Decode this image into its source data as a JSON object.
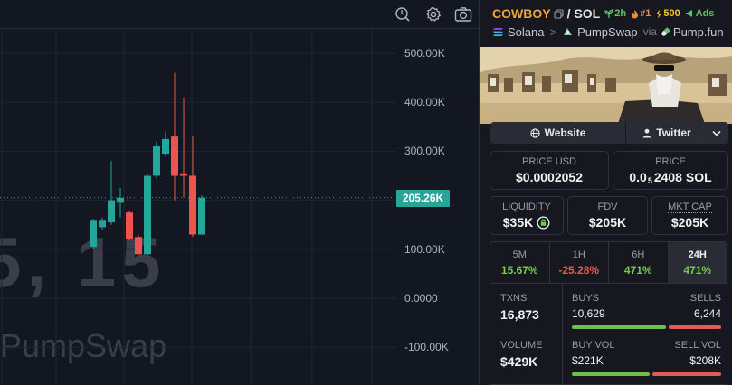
{
  "chart": {
    "y_ticks": [
      "500.00K",
      "400.00K",
      "300.00K",
      "200.00K",
      "100.00K",
      "0.0000",
      "-100.00K"
    ],
    "current_price_label": "205.26K",
    "watermark_time": "5, 15",
    "watermark_source": "PumpSwap",
    "colors": {
      "up": "#26a69a",
      "down": "#ef5350",
      "background": "#131722"
    }
  },
  "chart_data": {
    "type": "candlestick",
    "unit": "market cap (USD)",
    "y_ticks": [
      500000,
      400000,
      300000,
      200000,
      100000,
      0,
      -100000
    ],
    "current_value": 205260,
    "candles": [
      {
        "open": 105000,
        "close": 160000,
        "high": 162000,
        "low": 100000
      },
      {
        "open": 145000,
        "close": 160000,
        "high": 165000,
        "low": 140000
      },
      {
        "open": 155000,
        "close": 200000,
        "high": 280000,
        "low": 150000
      },
      {
        "open": 195000,
        "close": 205000,
        "high": 225000,
        "low": 165000
      },
      {
        "open": 175000,
        "close": 120000,
        "high": 178000,
        "low": 118000
      },
      {
        "open": 125000,
        "close": 90000,
        "high": 130000,
        "low": 88000
      },
      {
        "open": 90000,
        "close": 250000,
        "high": 255000,
        "low": 88000
      },
      {
        "open": 250000,
        "close": 310000,
        "high": 320000,
        "low": 245000
      },
      {
        "open": 295000,
        "close": 325000,
        "high": 340000,
        "low": 290000
      },
      {
        "open": 330000,
        "close": 250000,
        "high": 460000,
        "low": 200000
      },
      {
        "open": 255000,
        "close": 250000,
        "high": 410000,
        "low": 205000
      },
      {
        "open": 250000,
        "close": 130000,
        "high": 330000,
        "low": 125000
      },
      {
        "open": 130000,
        "close": 205260,
        "high": 210000,
        "low": 130000
      }
    ]
  },
  "toolbar": {
    "icons": [
      "search-chart-icon",
      "settings-icon",
      "camera-icon"
    ]
  },
  "header": {
    "base": "COWBOY",
    "separator": "/",
    "quote": "SOL",
    "badges": [
      {
        "icon": "sprout-icon",
        "text": "2h",
        "color": "#5ec26a"
      },
      {
        "icon": "flame-icon",
        "text": "#1",
        "color": "#f08a3a"
      },
      {
        "icon": "bolt-icon",
        "text": "500",
        "color": "#f2c230"
      },
      {
        "icon": "ads-icon",
        "text": "Ads",
        "color": "#5ec26a"
      }
    ],
    "chain": "Solana",
    "dex": "PumpSwap",
    "via_label": "via",
    "launchpad": "Pump.fun"
  },
  "links": {
    "website": "Website",
    "twitter": "Twitter"
  },
  "price": {
    "usd_label": "PRICE USD",
    "usd_value": "$0.0002052",
    "sol_label": "PRICE",
    "sol_prefix": "0.0",
    "sol_subscript": "5",
    "sol_digits": "2408 SOL"
  },
  "metrics": {
    "liquidity_label": "LIQUIDITY",
    "liquidity_value": "$35K",
    "fdv_label": "FDV",
    "fdv_value": "$205K",
    "mktcap_label": "MKT CAP",
    "mktcap_value": "$205K"
  },
  "timeframes": [
    {
      "label": "5M",
      "value": "15.67%",
      "color": "#79c94f",
      "active": false
    },
    {
      "label": "1H",
      "value": "-25.28%",
      "color": "#e45858",
      "active": false
    },
    {
      "label": "6H",
      "value": "471%",
      "color": "#79c94f",
      "active": false
    },
    {
      "label": "24H",
      "value": "471%",
      "color": "#79c94f",
      "active": true
    }
  ],
  "stats": {
    "txns_label": "TXNS",
    "txns_value": "16,873",
    "buys_label": "BUYS",
    "buys_value": "10,629",
    "sells_label": "SELLS",
    "sells_value": "6,244",
    "buys_fraction": 0.63,
    "volume_label": "VOLUME",
    "volume_value": "$429K",
    "buy_vol_label": "BUY VOL",
    "buy_vol_value": "$221K",
    "sell_vol_label": "SELL VOL",
    "sell_vol_value": "$208K",
    "buy_vol_fraction": 0.52
  }
}
